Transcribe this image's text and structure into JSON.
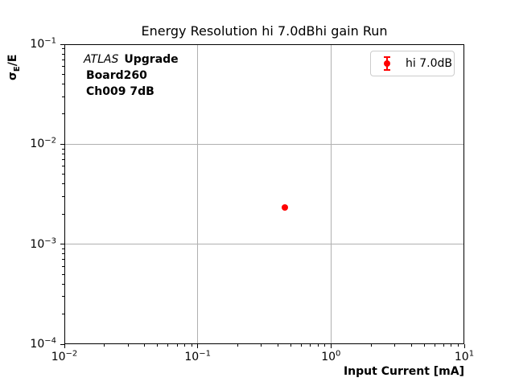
{
  "figure": {
    "title": "Energy Resolution hi 7.0dBhi gain Run"
  },
  "chart_data": {
    "type": "scatter",
    "title": "Energy Resolution hi 7.0dBhi gain Run",
    "xlabel": "Input Current [mA]",
    "ylabel": {
      "symbol": "σ",
      "subscript": "E",
      "suffix": "/E"
    },
    "xscale": "log",
    "yscale": "log",
    "xlim": [
      0.01,
      10
    ],
    "ylim": [
      0.0001,
      0.1
    ],
    "x_tick_exponents": [
      -2,
      -1,
      0,
      1
    ],
    "y_tick_exponents": [
      -1,
      -2,
      -3,
      -4
    ],
    "grid": true,
    "annotation": {
      "experiment": "ATLAS",
      "experiment_suffix": "Upgrade",
      "line2": "Board260",
      "line3": "Ch009 7dB"
    },
    "legend": {
      "position": "upper right",
      "entries": [
        {
          "label": "hi 7.0dB",
          "color": "#ff0000",
          "marker": "errorbar-dot"
        }
      ]
    },
    "series": [
      {
        "name": "hi 7.0dB",
        "color": "#ff0000",
        "marker": "circle",
        "points": [
          {
            "x": 0.45,
            "y": 0.00235
          }
        ]
      }
    ]
  },
  "colors": {
    "background": "#ffffff",
    "accent_red": "#ff0000",
    "grid": "#b0b0b0",
    "spine": "#000000",
    "legend_border": "#cccccc",
    "text": "#000000"
  }
}
